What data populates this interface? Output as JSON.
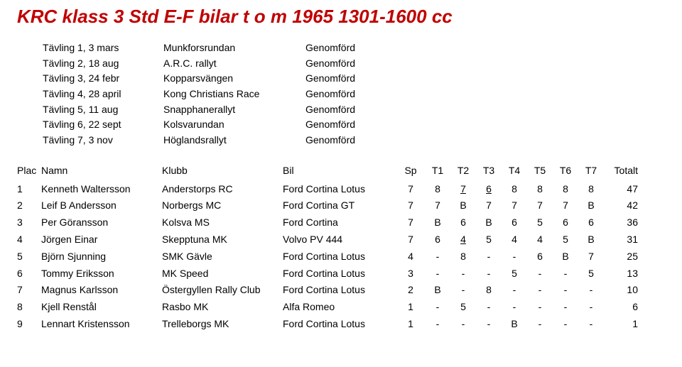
{
  "title": "KRC klass 3 Std E-F bilar t o m 1965 1301-1600 cc",
  "events": [
    {
      "date": "Tävling 1, 3 mars",
      "name": "Munkforsrundan",
      "status": "Genomförd"
    },
    {
      "date": "Tävling 2, 18 aug",
      "name": "A.R.C. rallyt",
      "status": "Genomförd"
    },
    {
      "date": "Tävling 3, 24 febr",
      "name": "Kopparsvängen",
      "status": "Genomförd"
    },
    {
      "date": "Tävling 4, 28 april",
      "name": "Kong Christians Race",
      "status": "Genomförd"
    },
    {
      "date": "Tävling 5, 11 aug",
      "name": "Snapphanerallyt",
      "status": "Genomförd"
    },
    {
      "date": "Tävling 6, 22 sept",
      "name": "Kolsvarundan",
      "status": "Genomförd"
    },
    {
      "date": "Tävling 7, 3 nov",
      "name": "Höglandsrallyt",
      "status": "Genomförd"
    }
  ],
  "headers": {
    "plac": "Plac",
    "namn": "Namn",
    "klubb": "Klubb",
    "bil": "Bil",
    "sp": "Sp",
    "t1": "T1",
    "t2": "T2",
    "t3": "T3",
    "t4": "T4",
    "t5": "T5",
    "t6": "T6",
    "t7": "T7",
    "totalt": "Totalt"
  },
  "rows": [
    {
      "plac": "1",
      "namn": "Kenneth Waltersson",
      "klubb": "Anderstorps RC",
      "bil": "Ford Cortina Lotus",
      "sp": "7",
      "t": [
        {
          "v": "8"
        },
        {
          "v": "7",
          "u": true
        },
        {
          "v": "6",
          "u": true
        },
        {
          "v": "8"
        },
        {
          "v": "8"
        },
        {
          "v": "8"
        },
        {
          "v": "8"
        }
      ],
      "tot": "47"
    },
    {
      "plac": "2",
      "namn": "Leif B Andersson",
      "klubb": "Norbergs MC",
      "bil": "Ford Cortina GT",
      "sp": "7",
      "t": [
        {
          "v": "7"
        },
        {
          "v": "B"
        },
        {
          "v": "7"
        },
        {
          "v": "7"
        },
        {
          "v": "7"
        },
        {
          "v": "7"
        },
        {
          "v": "B"
        }
      ],
      "tot": "42"
    },
    {
      "plac": "3",
      "namn": "Per Göransson",
      "klubb": "Kolsva MS",
      "bil": "Ford Cortina",
      "sp": "7",
      "t": [
        {
          "v": "B"
        },
        {
          "v": "6"
        },
        {
          "v": "B"
        },
        {
          "v": "6"
        },
        {
          "v": "5"
        },
        {
          "v": "6"
        },
        {
          "v": "6"
        }
      ],
      "tot": "36"
    },
    {
      "plac": "4",
      "namn": "Jörgen Einar",
      "klubb": "Skepptuna MK",
      "bil": "Volvo PV 444",
      "sp": "7",
      "t": [
        {
          "v": "6"
        },
        {
          "v": "4",
          "u": true
        },
        {
          "v": "5"
        },
        {
          "v": "4"
        },
        {
          "v": "4"
        },
        {
          "v": "5"
        },
        {
          "v": "B"
        }
      ],
      "tot": "31"
    },
    {
      "plac": "5",
      "namn": "Björn Sjunning",
      "klubb": "SMK Gävle",
      "bil": "Ford Cortina Lotus",
      "sp": "4",
      "t": [
        {
          "v": "-"
        },
        {
          "v": "8"
        },
        {
          "v": "-"
        },
        {
          "v": "-"
        },
        {
          "v": "6"
        },
        {
          "v": "B"
        },
        {
          "v": "7"
        }
      ],
      "tot": "25"
    },
    {
      "plac": "6",
      "namn": "Tommy Eriksson",
      "klubb": "MK Speed",
      "bil": "Ford Cortina Lotus",
      "sp": "3",
      "t": [
        {
          "v": "-"
        },
        {
          "v": "-"
        },
        {
          "v": "-"
        },
        {
          "v": "5"
        },
        {
          "v": "-"
        },
        {
          "v": "-"
        },
        {
          "v": "5"
        }
      ],
      "tot": "13"
    },
    {
      "plac": "7",
      "namn": "Magnus Karlsson",
      "klubb": "Östergyllen Rally Club",
      "bil": "Ford Cortina Lotus",
      "sp": "2",
      "t": [
        {
          "v": "B"
        },
        {
          "v": "-"
        },
        {
          "v": "8"
        },
        {
          "v": "-"
        },
        {
          "v": "-"
        },
        {
          "v": "-"
        },
        {
          "v": "-"
        }
      ],
      "tot": "10"
    },
    {
      "plac": "8",
      "namn": "Kjell Renstål",
      "klubb": "Rasbo MK",
      "bil": "Alfa Romeo",
      "sp": "1",
      "t": [
        {
          "v": "-"
        },
        {
          "v": "5"
        },
        {
          "v": "-"
        },
        {
          "v": "-"
        },
        {
          "v": "-"
        },
        {
          "v": "-"
        },
        {
          "v": "-"
        }
      ],
      "tot": "6"
    },
    {
      "plac": "9",
      "namn": "Lennart Kristensson",
      "klubb": "Trelleborgs MK",
      "bil": "Ford Cortina Lotus",
      "sp": "1",
      "t": [
        {
          "v": "-"
        },
        {
          "v": "-"
        },
        {
          "v": "-"
        },
        {
          "v": "B"
        },
        {
          "v": "-"
        },
        {
          "v": "-"
        },
        {
          "v": "-"
        }
      ],
      "tot": "1"
    }
  ]
}
